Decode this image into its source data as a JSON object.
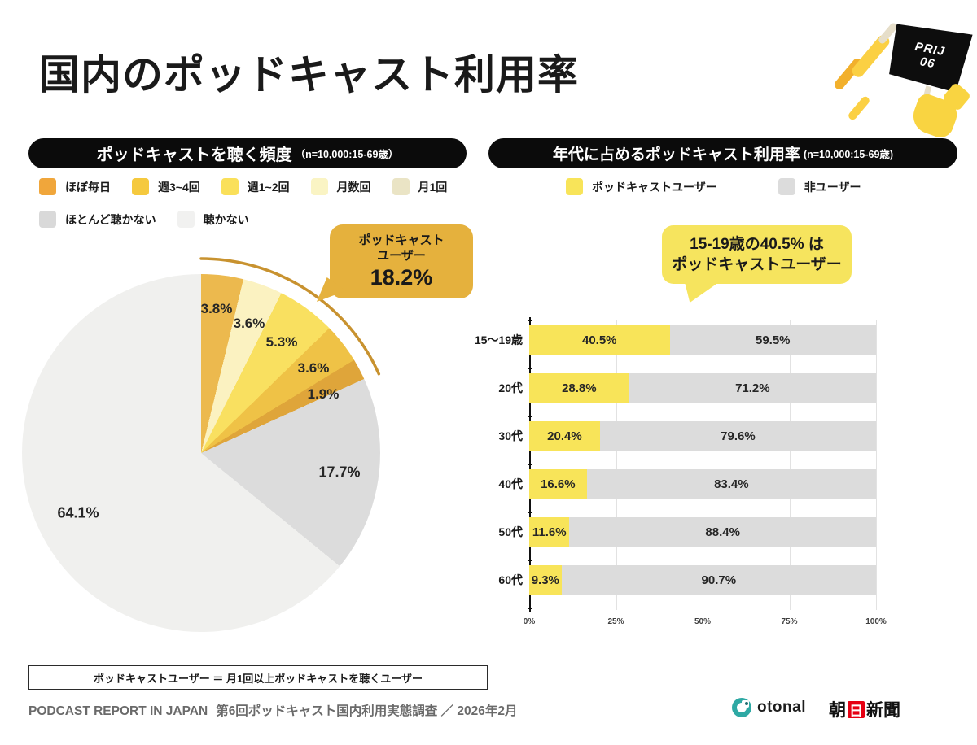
{
  "page": {
    "title": "国内のポッドキャスト利用率",
    "badge": {
      "line1": "PRIJ",
      "line2": "06"
    }
  },
  "frequency_chart": {
    "header": "ポッドキャストを聴く頻度",
    "header_note": "（n=10,000:15-69歳）",
    "legend": [
      {
        "label": "ほぼ毎日",
        "color": "#F0A63B"
      },
      {
        "label": "週3~4回",
        "color": "#F5C93E"
      },
      {
        "label": "週1~2回",
        "color": "#FAE05A"
      },
      {
        "label": "月数回",
        "color": "#FAF4C4"
      },
      {
        "label": "月1回",
        "color": "#EAE4C5"
      },
      {
        "label": "ほとんど聴かない",
        "color": "#D9D9D9"
      },
      {
        "label": "聴かない",
        "color": "#F1F1F0"
      }
    ],
    "callout": {
      "line1": "ポッドキャスト",
      "line2": "ユーザー",
      "value": "18.2%"
    }
  },
  "age_chart": {
    "header": "年代に占めるポッドキャスト利用率",
    "header_note": "(n=10,000:15-69歳)",
    "legend": [
      {
        "label": "ポッドキャストユーザー",
        "color": "#F8E459"
      },
      {
        "label": "非ユーザー",
        "color": "#DCDCDC"
      }
    ],
    "callout": {
      "line1": "15-19歳の40.5% は",
      "line2": "ポッドキャストユーザー"
    }
  },
  "chart_data": [
    {
      "type": "pie",
      "title": "ポッドキャストを聴く頻度",
      "subtitle": "n=10,000:15-69歳",
      "labels": [
        "ほぼ毎日",
        "週3~4回",
        "週1~2回",
        "月数回",
        "月1回",
        "ほとんど聴かない",
        "聴かない"
      ],
      "values": [
        3.8,
        3.6,
        5.3,
        3.6,
        1.9,
        17.7,
        64.1
      ],
      "slice_colors": [
        "#ECB94E",
        "#FBF2C1",
        "#F9E060",
        "#EFC246",
        "#DFA53A",
        "#DCDCDC",
        "#F0F0EE"
      ],
      "start_angle_deg": 0,
      "direction": "clockwise",
      "highlight": {
        "label": "ポッドキャストユーザー",
        "value": 18.2,
        "arc_color": "#C8922F"
      }
    },
    {
      "type": "bar",
      "title": "年代に占めるポッドキャスト利用率",
      "subtitle": "n=10,000:15-69歳",
      "orientation": "horizontal-stacked",
      "categories": [
        "15〜19歳",
        "20代",
        "30代",
        "40代",
        "50代",
        "60代"
      ],
      "series": [
        {
          "name": "ポッドキャストユーザー",
          "color": "#F8E459",
          "values": [
            40.5,
            28.8,
            20.4,
            16.6,
            11.6,
            9.3
          ]
        },
        {
          "name": "非ユーザー",
          "color": "#DCDCDC",
          "values": [
            59.5,
            71.2,
            79.6,
            83.4,
            88.4,
            90.7
          ]
        }
      ],
      "x_ticks": [
        "0%",
        "25%",
        "50%",
        "75%",
        "100%"
      ],
      "xlim": [
        0,
        100
      ],
      "grid": true,
      "legend_position": "top"
    }
  ],
  "note_box": "ポッドキャストユーザー ＝ 月1回以上ポッドキャストを聴くユーザー",
  "footer": {
    "report": "PODCAST REPORT IN JAPAN",
    "subtitle": "第6回ポッドキャスト国内利用実態調査 ／ 2026年2月",
    "otonal": "otonal",
    "asahi_pre": "朝",
    "asahi_red": "日",
    "asahi_post": "新聞"
  }
}
